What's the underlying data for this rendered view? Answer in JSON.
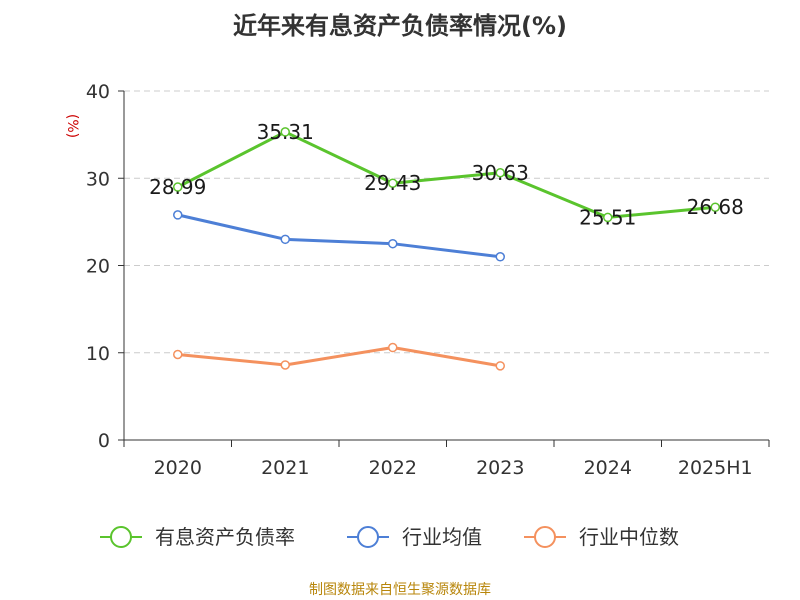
{
  "title": "近年来有息资产负债率情况(%)",
  "y_unit": "(%)",
  "source": "制图数据来自恒生聚源数据库",
  "colors": {
    "series1": "#5ac42d",
    "series2": "#4d7fd6",
    "series3": "#f4915e",
    "grid": "#cccccc",
    "axis": "#333333",
    "unit": "#cc0000",
    "source": "#b8860b"
  },
  "chart_data": {
    "type": "line",
    "categories": [
      "2020",
      "2021",
      "2022",
      "2023",
      "2024",
      "2025H1"
    ],
    "ylim": [
      0,
      40
    ],
    "yticks": [
      0,
      10,
      20,
      30,
      40
    ],
    "grid": true,
    "legend_position": "bottom-center",
    "series": [
      {
        "name": "有息资产负债率",
        "values": [
          28.99,
          35.31,
          29.43,
          30.63,
          25.51,
          26.68
        ],
        "labels": [
          "28.99",
          "35.31",
          "29.43",
          "30.63",
          "25.51",
          "26.68"
        ]
      },
      {
        "name": "行业均值",
        "values": [
          25.8,
          23.0,
          22.5,
          21.0,
          null,
          null
        ]
      },
      {
        "name": "行业中位数",
        "values": [
          9.8,
          8.6,
          10.6,
          8.5,
          null,
          null
        ]
      }
    ]
  }
}
